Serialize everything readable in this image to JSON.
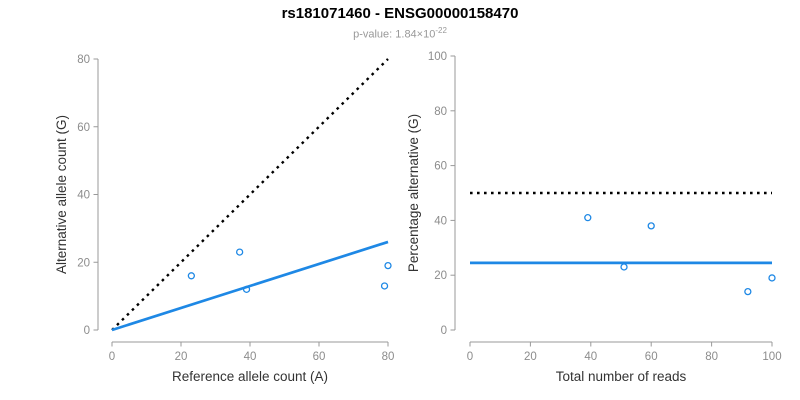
{
  "header": {
    "title": "rs181071460 - ENSG00000158470",
    "p_value_prefix": "p-value: 1.84×10",
    "p_value_exponent": "-22"
  },
  "colors": {
    "accent_blue": "#1E88E5",
    "line_black": "#000000",
    "axis_gray": "#999999",
    "tick_label_gray": "#8C8C8C",
    "axis_label_dark": "#333333"
  },
  "chart_data": [
    {
      "type": "scatter",
      "panel": "left",
      "xlabel": "Reference allele count (A)",
      "ylabel": "Alternative allele count (G)",
      "xlim": [
        0,
        80
      ],
      "ylim": [
        0,
        80
      ],
      "xticks": [
        0,
        20,
        40,
        60,
        80
      ],
      "yticks": [
        0,
        20,
        40,
        60,
        80
      ],
      "grid": false,
      "legend": null,
      "points": [
        [
          23,
          16
        ],
        [
          37,
          23
        ],
        [
          39,
          12
        ],
        [
          79,
          13
        ],
        [
          80,
          19
        ]
      ],
      "lines": [
        {
          "name": "identity-line",
          "style": "dotted",
          "color": "#000000",
          "x": [
            0,
            80
          ],
          "y": [
            0,
            80
          ]
        },
        {
          "name": "fit-line",
          "style": "solid",
          "color": "#1E88E5",
          "x": [
            0,
            80
          ],
          "y": [
            0,
            26
          ]
        }
      ]
    },
    {
      "type": "scatter",
      "panel": "right",
      "xlabel": "Total number of reads",
      "ylabel": "Percentage alternative (G)",
      "xlim": [
        0,
        100
      ],
      "ylim": [
        0,
        100
      ],
      "xticks": [
        0,
        20,
        40,
        60,
        80,
        100
      ],
      "yticks": [
        0,
        20,
        40,
        60,
        80,
        100
      ],
      "grid": false,
      "legend": null,
      "points": [
        [
          39,
          41
        ],
        [
          51,
          23
        ],
        [
          60,
          38
        ],
        [
          92,
          14
        ],
        [
          100,
          19
        ]
      ],
      "lines": [
        {
          "name": "expected-heterozygous-line",
          "style": "dotted",
          "color": "#000000",
          "x": [
            0,
            100
          ],
          "y": [
            50,
            50
          ]
        },
        {
          "name": "mean-percentage-line",
          "style": "solid",
          "color": "#1E88E5",
          "x": [
            0,
            100
          ],
          "y": [
            24.5,
            24.5
          ]
        }
      ]
    }
  ]
}
